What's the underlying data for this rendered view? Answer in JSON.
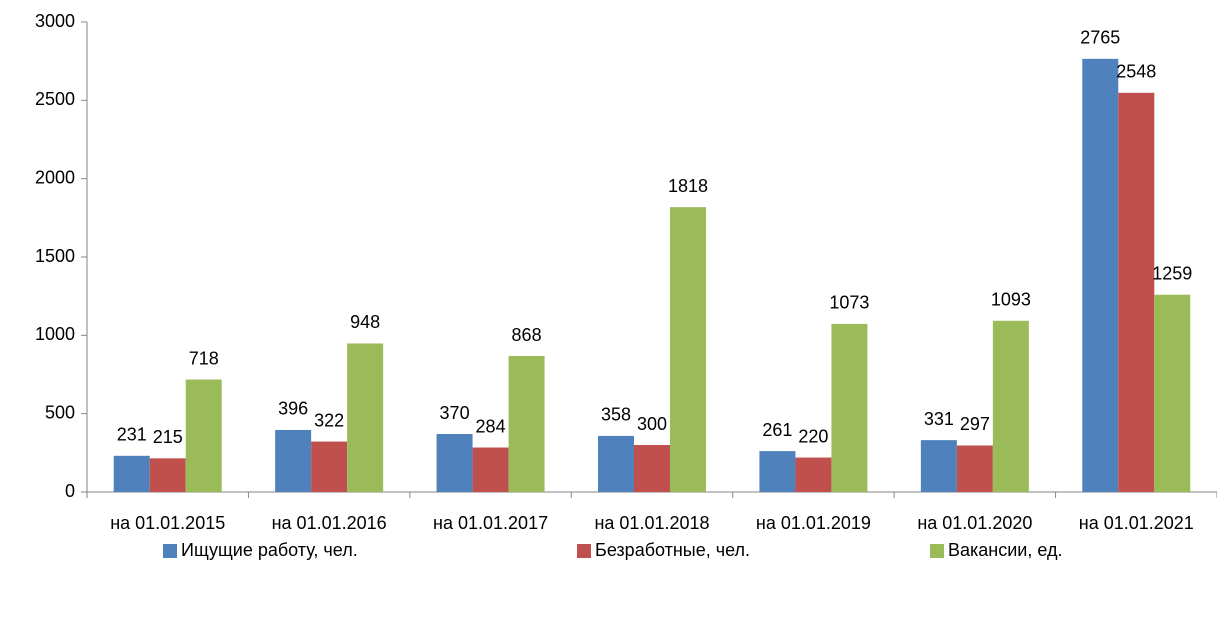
{
  "chart_data": {
    "type": "bar",
    "categories": [
      "на 01.01.2015",
      "на 01.01.2016",
      "на 01.01.2017",
      "на 01.01.2018",
      "на 01.01.2019",
      "на 01.01.2020",
      "на 01.01.2021"
    ],
    "series": [
      {
        "name": "Ищущие работу, чел.",
        "color": "#4f81bd",
        "values": [
          231,
          396,
          370,
          358,
          261,
          331,
          2765
        ]
      },
      {
        "name": "Безработные, чел.",
        "color": "#c0504d",
        "values": [
          215,
          322,
          284,
          300,
          220,
          297,
          2548
        ]
      },
      {
        "name": "Вакансии, ед.",
        "color": "#9bbb59",
        "values": [
          718,
          948,
          868,
          1818,
          1073,
          1093,
          1259
        ]
      }
    ],
    "ylim": [
      0,
      3000
    ],
    "yticks": [
      0,
      500,
      1000,
      1500,
      2000,
      2500,
      3000
    ],
    "grid": false,
    "legend": "bottom"
  }
}
